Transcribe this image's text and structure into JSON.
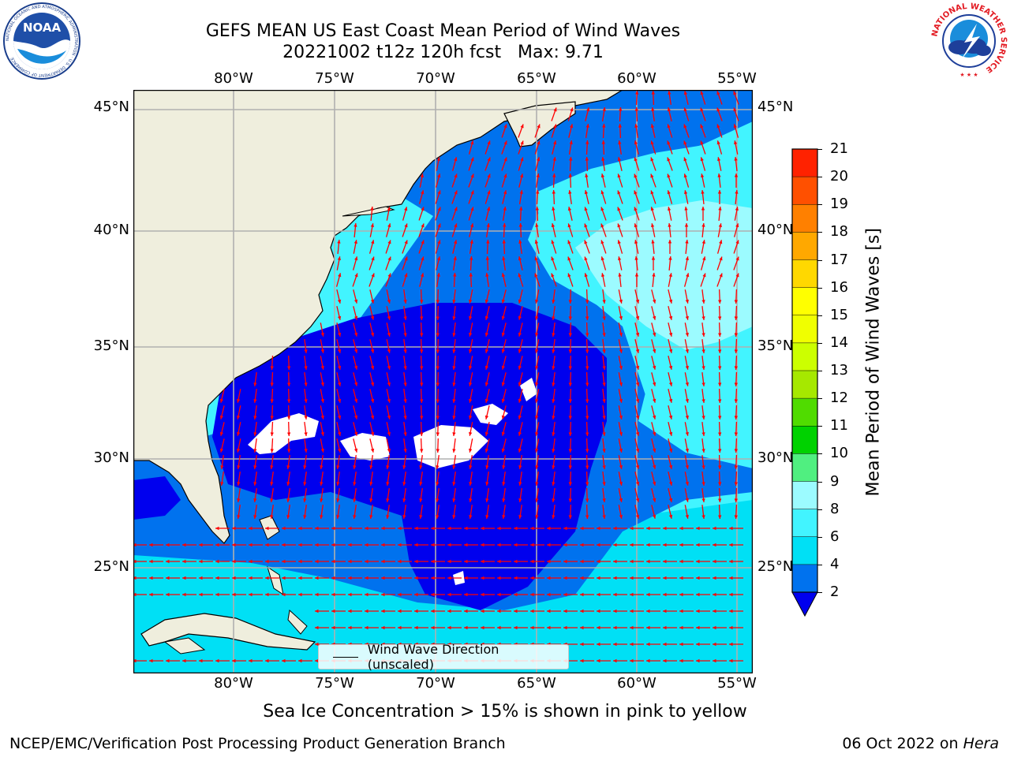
{
  "title": {
    "line1": "GEFS MEAN US East Coast Mean Period of Wind Waves",
    "line2": "20221002 t12z 120h fcst   Max: 9.71"
  },
  "logos": {
    "left": "NOAA",
    "left_ring_text": "NATIONAL OCEANIC AND ATMOSPHERIC ADMINISTRATION · U.S. DEPARTMENT OF COMMERCE",
    "right_ring_text": "NATIONAL WEATHER SERVICE"
  },
  "map": {
    "lon_labels": [
      "80°W",
      "75°W",
      "70°W",
      "65°W",
      "60°W",
      "55°W"
    ],
    "lat_labels": [
      "45°N",
      "40°N",
      "35°N",
      "30°N",
      "25°N"
    ],
    "land_color": "#efeedd",
    "grid_color": "#b0b0b0",
    "arrow_color": "#ff0000",
    "legend_label": "Wind Wave Direction (unscaled)"
  },
  "colorbar": {
    "label": "Mean Period of Wind Waves [s]",
    "ticks": [
      "2",
      "4",
      "6",
      "8",
      "9",
      "10",
      "11",
      "12",
      "13",
      "14",
      "15",
      "16",
      "17",
      "18",
      "19",
      "20",
      "21"
    ],
    "colors": [
      "#0072ee",
      "#00e0f5",
      "#42f4ff",
      "#9cfbff",
      "#50ef80",
      "#00d200",
      "#50dc00",
      "#a6e800",
      "#ccff00",
      "#f0ff00",
      "#ffff00",
      "#ffd800",
      "#ffa800",
      "#ff8000",
      "#ff5000",
      "#ff2200"
    ],
    "under_color": "#0000ee"
  },
  "chart_data": {
    "type": "heatmap",
    "title": "GEFS MEAN US East Coast Mean Period of Wind Waves",
    "subtitle": "20221002 t12z 120h fcst   Max: 9.71",
    "variable": "Mean Period of Wind Waves [s]",
    "max_value": 9.71,
    "lon_range": [
      -85,
      -54
    ],
    "lat_range": [
      20.5,
      46
    ],
    "colorbar_range": [
      2,
      21
    ],
    "color_levels": [
      2,
      4,
      6,
      8,
      9,
      10,
      11,
      12,
      13,
      14,
      15,
      16,
      17,
      18,
      19,
      20,
      21
    ],
    "vectors": "Wind Wave Direction (unscaled)",
    "grid": true
  },
  "footer": {
    "note": "Sea Ice Concentration > 15% is shown in pink to yellow",
    "credit_left": "NCEP/EMC/Verification Post Processing Product Generation Branch",
    "credit_date": "06 Oct 2022 on ",
    "credit_host": "Hera"
  }
}
